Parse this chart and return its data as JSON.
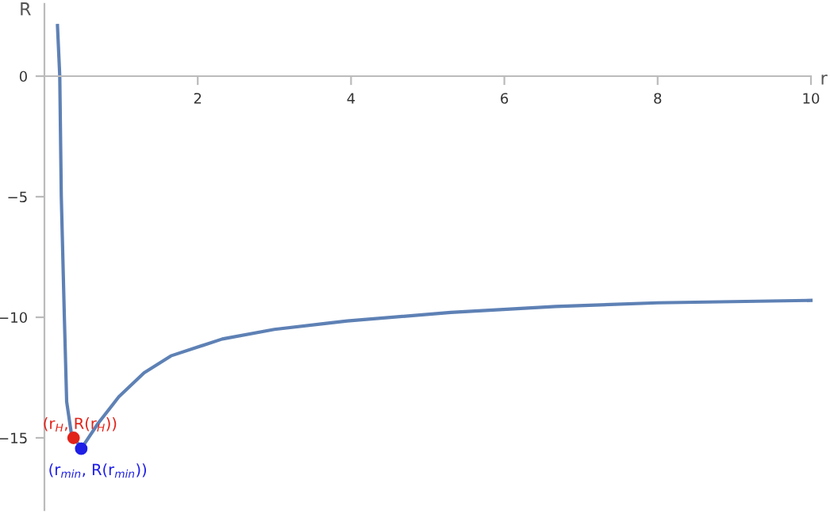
{
  "chart_data": {
    "type": "line",
    "xlabel": "r",
    "ylabel": "R",
    "xlim": [
      0,
      10
    ],
    "ylim": [
      -18,
      3
    ],
    "xticks": [
      2,
      4,
      6,
      8,
      10
    ],
    "yticks": [
      -15,
      -10,
      -5,
      0
    ],
    "grid": false,
    "legend": false,
    "series": [
      {
        "color": "#5e81b5",
        "x": [
          0.17,
          0.2,
          0.22,
          0.26,
          0.29,
          0.35,
          0.48,
          0.7,
          0.97,
          1.3,
          1.65,
          2.32,
          3.0,
          3.68,
          3.95,
          5.3,
          6.67,
          8.0,
          10.0
        ],
        "values": [
          2.1,
          0,
          -5,
          -10,
          -13.5,
          -14.8,
          -15.45,
          -14.4,
          -13.3,
          -12.3,
          -11.6,
          -10.9,
          -10.5,
          -10.25,
          -10.15,
          -9.8,
          -9.55,
          -9.4,
          -9.3
        ]
      },
      {
        "type": "scatter",
        "color": "#e2231a",
        "x": [
          0.38
        ],
        "values": [
          -15.0
        ]
      },
      {
        "type": "scatter",
        "color": "#1f1fe6",
        "x": [
          0.48
        ],
        "values": [
          -15.45
        ]
      }
    ],
    "annotations": [
      {
        "text": "(r$_{H}$, R(r$_{H}$))",
        "x": 0.38,
        "y": -15.0
      },
      {
        "text": "(r$_{min}$, R(r$_{min}$))",
        "x": 0.48,
        "y": -15.45
      }
    ]
  }
}
